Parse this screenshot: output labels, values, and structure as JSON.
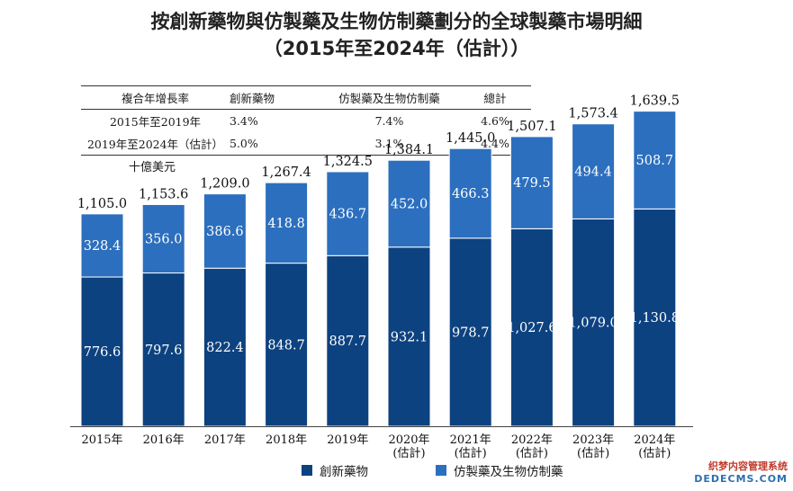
{
  "title_line1": "按創新藥物與仿製藥及生物仿制藥劃分的全球製藥市場明細",
  "title_line2": "（2015年至2024年（估計））",
  "cagr_table": {
    "headers": [
      "複合年增長率",
      "創新藥物",
      "仿製藥及生物仿制藥",
      "總計"
    ],
    "rows": [
      [
        "2015年至2019年",
        "3.4%",
        "7.4%",
        "4.6%"
      ],
      [
        "2019年至2024年（估計）",
        "5.0%",
        "3.1%",
        "4.4%"
      ]
    ]
  },
  "unit_label": "十億美元",
  "colors": {
    "innovative": "#0d4280",
    "generic": "#2c6fbe"
  },
  "watermark": {
    "line1": "织梦内容管理系统",
    "line2": "DEDECMS.COM"
  },
  "chart_data": {
    "type": "bar",
    "stacked": true,
    "categories": [
      "2015年",
      "2016年",
      "2017年",
      "2018年",
      "2019年",
      "2020年\n(估計)",
      "2021年\n(估計)",
      "2022年\n(估計)",
      "2023年\n(估計)",
      "2024年\n(估計)"
    ],
    "series": [
      {
        "name": "創新藥物",
        "values": [
          776.6,
          797.6,
          822.4,
          848.7,
          887.7,
          932.1,
          978.7,
          1027.6,
          1079.0,
          1130.8
        ],
        "labels": [
          "776.6",
          "797.6",
          "822.4",
          "848.7",
          "887.7",
          "932.1",
          "978.7",
          "1,027.6",
          "1,079.0",
          "1,130.8"
        ]
      },
      {
        "name": "仿製藥及生物仿制藥",
        "values": [
          328.4,
          356.0,
          386.6,
          418.8,
          436.7,
          452.0,
          466.3,
          479.5,
          494.4,
          508.7
        ],
        "labels": [
          "328.4",
          "356.0",
          "386.6",
          "418.8",
          "436.7",
          "452.0",
          "466.3",
          "479.5",
          "494.4",
          "508.7"
        ]
      }
    ],
    "totals": [
      "1,105.0",
      "1,153.6",
      "1,209.0",
      "1,267.4",
      "1,324.5",
      "1,384.1",
      "1,445.0",
      "1,507.1",
      "1,573.4",
      "1,639.5"
    ],
    "ylim": [
      0,
      1750
    ],
    "legend_position": "bottom"
  }
}
